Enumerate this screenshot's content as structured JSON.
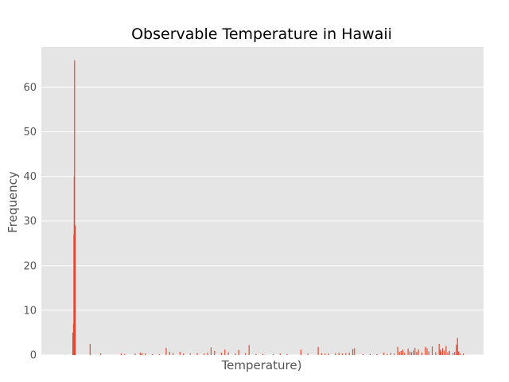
{
  "chart_data": {
    "type": "bar",
    "title": "Observable Temperature in Hawaii",
    "xlabel": "Temperature)",
    "ylabel": "Frequency",
    "ylim": [
      0,
      69
    ],
    "yticks": [
      0,
      10,
      20,
      30,
      40,
      50,
      60
    ],
    "x_tick_labels_shown": false,
    "grid": true,
    "bar_color": "#e24a33",
    "plot_background": "#e5e5e5",
    "grid_color": "#ffffff",
    "series": [
      {
        "values": [
          [
            0.0,
            5
          ],
          [
            0.1,
            5
          ],
          [
            0.2,
            7
          ],
          [
            0.3,
            27
          ],
          [
            0.4,
            40
          ],
          [
            0.5,
            66
          ],
          [
            0.6,
            29
          ],
          [
            0.7,
            29
          ],
          [
            5.0,
            2.5
          ],
          [
            8.0,
            0.3
          ],
          [
            14.0,
            0.3
          ],
          [
            15.0,
            0.2
          ],
          [
            18.0,
            0.3
          ],
          [
            19.5,
            0.5
          ],
          [
            20.0,
            0.4
          ],
          [
            21.0,
            0.3
          ],
          [
            23.0,
            0.2
          ],
          [
            25.0,
            0.2
          ],
          [
            27.0,
            1.6
          ],
          [
            28.0,
            0.7
          ],
          [
            29.0,
            0.4
          ],
          [
            31.0,
            0.7
          ],
          [
            32.0,
            0.3
          ],
          [
            34.0,
            0.3
          ],
          [
            36.0,
            0.4
          ],
          [
            38.0,
            0.3
          ],
          [
            39.0,
            0.5
          ],
          [
            40.0,
            1.7
          ],
          [
            41.0,
            0.9
          ],
          [
            43.0,
            0.5
          ],
          [
            44.0,
            1.2
          ],
          [
            45.0,
            0.6
          ],
          [
            47.0,
            0.3
          ],
          [
            48.0,
            1.1
          ],
          [
            50.0,
            0.4
          ],
          [
            51.0,
            2.2
          ],
          [
            53.0,
            0.2
          ],
          [
            55.0,
            0.2
          ],
          [
            58.0,
            0.2
          ],
          [
            60.0,
            0.3
          ],
          [
            62.0,
            0.2
          ],
          [
            66.0,
            1.2
          ],
          [
            68.0,
            0.3
          ],
          [
            71.0,
            1.8
          ],
          [
            72.0,
            0.4
          ],
          [
            73.0,
            0.3
          ],
          [
            74.0,
            0.3
          ],
          [
            76.0,
            0.4
          ],
          [
            77.0,
            0.5
          ],
          [
            78.0,
            0.3
          ],
          [
            79.0,
            0.4
          ],
          [
            80.0,
            0.5
          ],
          [
            81.0,
            1.3
          ],
          [
            81.5,
            1.5
          ],
          [
            84.0,
            0.2
          ],
          [
            86.0,
            0.2
          ],
          [
            88.0,
            0.2
          ],
          [
            90.0,
            0.5
          ],
          [
            91.0,
            0.2
          ],
          [
            92.0,
            0.4
          ],
          [
            93.0,
            0.3
          ],
          [
            94.0,
            1.8
          ],
          [
            94.5,
            0.7
          ],
          [
            95.0,
            0.9
          ],
          [
            95.5,
            1.2
          ],
          [
            96.0,
            0.5
          ],
          [
            97.0,
            1.4
          ],
          [
            97.5,
            0.8
          ],
          [
            98.0,
            0.6
          ],
          [
            98.5,
            1.0
          ],
          [
            99.0,
            1.6
          ],
          [
            99.5,
            0.7
          ],
          [
            100.0,
            1.2
          ],
          [
            101.0,
            0.5
          ],
          [
            102.0,
            1.8
          ],
          [
            102.5,
            1.5
          ],
          [
            103.0,
            0.8
          ],
          [
            104.0,
            1.9
          ],
          [
            105.0,
            0.6
          ],
          [
            106.0,
            2.5
          ],
          [
            106.3,
            1.2
          ],
          [
            106.6,
            0.8
          ],
          [
            107.0,
            1.5
          ],
          [
            107.5,
            1.0
          ],
          [
            108.0,
            2.0
          ],
          [
            108.5,
            0.6
          ],
          [
            109.0,
            0.9
          ],
          [
            110.0,
            0.4
          ],
          [
            110.5,
            0.7
          ],
          [
            111.0,
            2.3
          ],
          [
            111.3,
            3.8
          ],
          [
            111.6,
            0.8
          ],
          [
            112.0,
            0.4
          ],
          [
            113.0,
            0.3
          ]
        ]
      }
    ]
  }
}
